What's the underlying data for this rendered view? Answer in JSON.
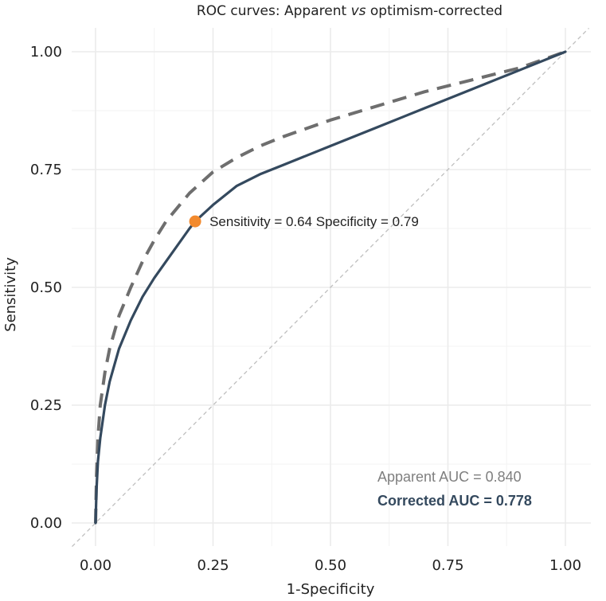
{
  "chart_data": {
    "type": "line",
    "title_parts": [
      "ROC curves: Apparent ",
      "vs",
      " optimism-corrected"
    ],
    "xlabel": "1-Specificity",
    "ylabel": "Sensitivity",
    "xlim": [
      0,
      1
    ],
    "ylim": [
      0,
      1
    ],
    "x_ticks": [
      0,
      0.25,
      0.5,
      0.75,
      1
    ],
    "y_ticks": [
      0,
      0.25,
      0.5,
      0.75,
      1
    ],
    "x_tick_labels": [
      "0.00",
      "0.25",
      "0.50",
      "0.75",
      "1.00"
    ],
    "y_tick_labels": [
      "0.00",
      "0.25",
      "0.50",
      "0.75",
      "1.00"
    ],
    "grid": true,
    "series": [
      {
        "name": "Apparent",
        "style": "dashed",
        "color": "#6e6e6e",
        "x": [
          0,
          0.002,
          0.005,
          0.01,
          0.02,
          0.03,
          0.05,
          0.075,
          0.1,
          0.125,
          0.15,
          0.2,
          0.25,
          0.3,
          0.35,
          0.4,
          0.5,
          0.6,
          0.7,
          0.8,
          0.9,
          1.0
        ],
        "y": [
          0,
          0.1,
          0.18,
          0.25,
          0.32,
          0.37,
          0.44,
          0.5,
          0.555,
          0.6,
          0.64,
          0.7,
          0.745,
          0.775,
          0.8,
          0.82,
          0.855,
          0.885,
          0.915,
          0.94,
          0.965,
          1.0
        ]
      },
      {
        "name": "Corrected",
        "style": "solid",
        "color": "#34495e",
        "x": [
          0,
          0.002,
          0.005,
          0.01,
          0.02,
          0.03,
          0.05,
          0.075,
          0.1,
          0.125,
          0.15,
          0.2,
          0.212,
          0.25,
          0.3,
          0.35,
          0.4,
          0.5,
          0.6,
          0.7,
          0.8,
          0.9,
          1.0
        ],
        "y": [
          0,
          0.07,
          0.13,
          0.18,
          0.25,
          0.3,
          0.37,
          0.43,
          0.48,
          0.52,
          0.555,
          0.625,
          0.64,
          0.675,
          0.715,
          0.74,
          0.76,
          0.8,
          0.84,
          0.88,
          0.92,
          0.96,
          1.0
        ]
      },
      {
        "name": "Reference",
        "style": "dotted",
        "color": "#bfbfbf",
        "x": [
          -0.05,
          1.05
        ],
        "y": [
          -0.05,
          1.05
        ]
      }
    ],
    "point": {
      "x": 0.212,
      "y": 0.64,
      "color": "#f28a2e",
      "label": "Sensitivity = 0.64  Specificity = 0.79"
    },
    "annotations": {
      "apparent_auc": "Apparent AUC = 0.840",
      "corrected_auc": "Corrected AUC = 0.778"
    }
  }
}
